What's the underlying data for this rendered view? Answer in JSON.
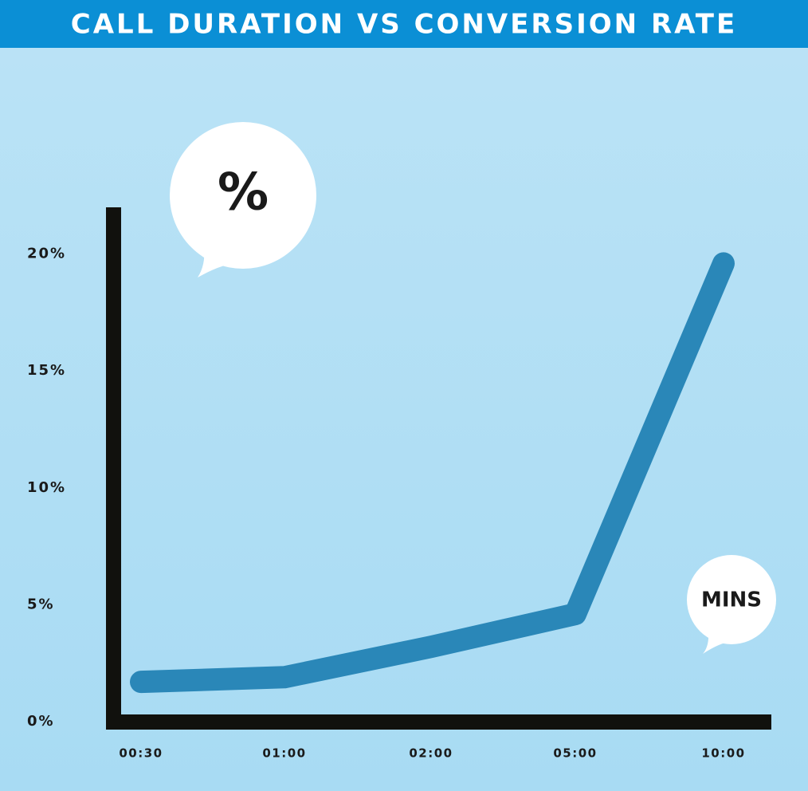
{
  "chart_data": {
    "type": "line",
    "title": "CALL DURATION VS CONVERSION RATE",
    "y_label": "%",
    "x_label": "MINS",
    "categories": [
      "00:30",
      "01:00",
      "02:00",
      "05:00",
      "10:00"
    ],
    "values": [
      1.7,
      1.9,
      3.2,
      4.6,
      19.6
    ],
    "color": "#2a87b8",
    "ylim": [
      0,
      22
    ],
    "yticks": [
      {
        "value": 0,
        "label": "0%"
      },
      {
        "value": 5,
        "label": "5%"
      },
      {
        "value": 10,
        "label": "10%"
      },
      {
        "value": 15,
        "label": "15%"
      },
      {
        "value": 20,
        "label": "20%"
      }
    ],
    "grid": false
  }
}
